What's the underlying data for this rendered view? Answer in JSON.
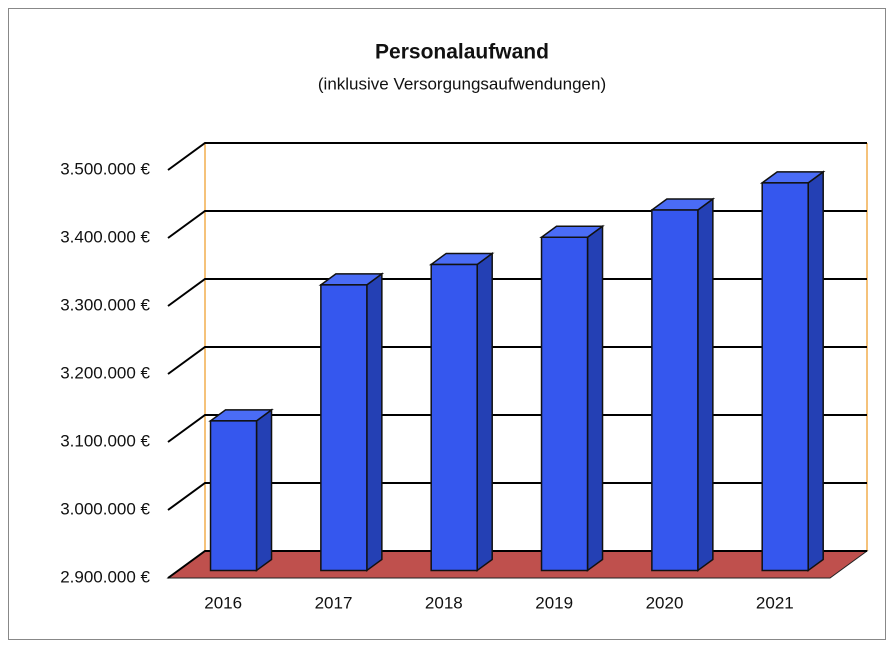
{
  "chart_data": {
    "type": "bar3d",
    "title": "Personalaufwand",
    "subtitle": "(inklusive Versorgungsaufwendungen)",
    "categories": [
      "2016",
      "2017",
      "2018",
      "2019",
      "2020",
      "2021"
    ],
    "values": [
      3120000,
      3320000,
      3350000,
      3390000,
      3430000,
      3470000
    ],
    "color": "#3557ee",
    "ylim": [
      2900000,
      3500000
    ],
    "yticks": [
      {
        "value": 2900000,
        "label": "2.900.000 €"
      },
      {
        "value": 3000000,
        "label": "3.000.000 €"
      },
      {
        "value": 3100000,
        "label": "3.100.000 €"
      },
      {
        "value": 3200000,
        "label": "3.200.000 €"
      },
      {
        "value": 3300000,
        "label": "3.300.000 €"
      },
      {
        "value": 3400000,
        "label": "3.400.000 €"
      },
      {
        "value": 3500000,
        "label": "3.500.000 €"
      }
    ],
    "grid": true
  }
}
